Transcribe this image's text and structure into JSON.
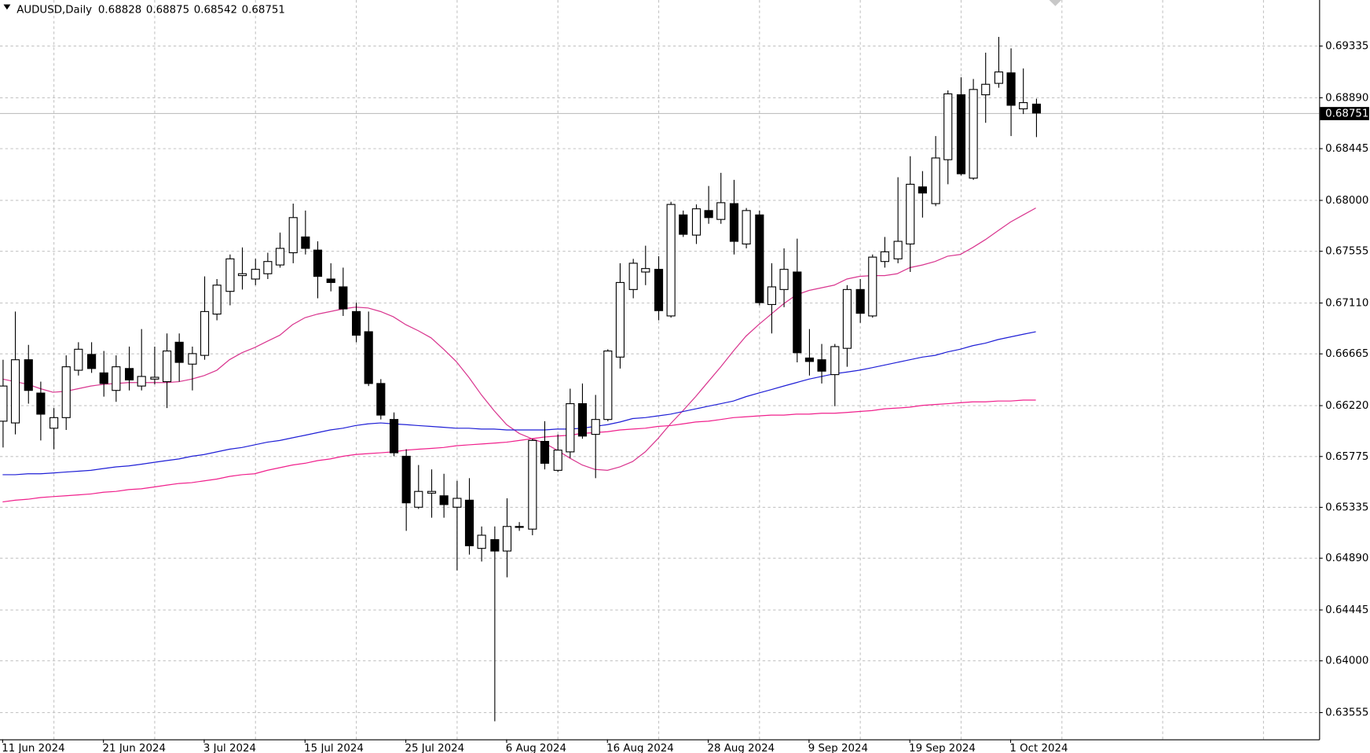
{
  "chart_data": {
    "type": "candlestick",
    "title": "AUDUSD,Daily",
    "categories": [
      "11 Jun 2024",
      null,
      null,
      null,
      null,
      null,
      null,
      null,
      "21 Jun 2024",
      null,
      null,
      null,
      null,
      null,
      null,
      null,
      "3 Jul 2024",
      null,
      null,
      null,
      null,
      null,
      null,
      null,
      "15 Jul 2024",
      null,
      null,
      null,
      null,
      null,
      null,
      null,
      "25 Jul 2024",
      null,
      null,
      null,
      null,
      null,
      null,
      null,
      "6 Aug 2024",
      null,
      null,
      null,
      null,
      null,
      null,
      null,
      "16 Aug 2024",
      null,
      null,
      null,
      null,
      null,
      null,
      null,
      "28 Aug 2024",
      null,
      null,
      null,
      null,
      null,
      null,
      null,
      "9 Sep 2024",
      null,
      null,
      null,
      null,
      null,
      null,
      null,
      "19 Sep 2024",
      null,
      null,
      null,
      null,
      null,
      null,
      null,
      "1 Oct 2024",
      null,
      null
    ],
    "open": [
      0.66078,
      0.66063,
      0.66611,
      0.66322,
      0.66017,
      0.66109,
      0.6652,
      0.66657,
      0.66497,
      0.66345,
      0.66535,
      0.66383,
      0.66443,
      0.66421,
      0.66763,
      0.66573,
      0.66649,
      0.67007,
      0.67204,
      0.67341,
      0.67311,
      0.67357,
      0.67433,
      0.67539,
      0.67676,
      0.67562,
      0.67311,
      0.67243,
      0.67029,
      0.66854,
      0.66405,
      0.66093,
      0.65774,
      0.65332,
      0.65454,
      0.65431,
      0.65332,
      0.65393,
      0.64975,
      0.65051,
      0.64952,
      0.65165,
      0.65142,
      0.65903,
      0.65652,
      0.65812,
      0.6623,
      0.65964,
      0.66093,
      0.66634,
      0.6722,
      0.67372,
      0.67395,
      0.66991,
      0.67867,
      0.67692,
      0.67905,
      0.67828,
      0.67965,
      0.67615,
      0.67867,
      0.6709,
      0.6722,
      0.67372,
      0.66626,
      0.66611,
      0.66482,
      0.6671,
      0.6722,
      0.66991,
      0.67463,
      0.67486,
      0.67615,
      0.6811,
      0.67965,
      0.68346,
      0.68909,
      0.68186,
      0.68909,
      0.69008,
      0.69099,
      0.68787,
      0.68828
    ],
    "high": [
      0.66611,
      0.67029,
      0.6674,
      0.66421,
      0.66192,
      0.66649,
      0.66763,
      0.66763,
      0.66687,
      0.66649,
      0.66725,
      0.66877,
      0.66725,
      0.66839,
      0.66839,
      0.66725,
      0.67334,
      0.67311,
      0.67524,
      0.67585,
      0.67486,
      0.67539,
      0.67714,
      0.67965,
      0.67905,
      0.67638,
      0.67448,
      0.6741,
      0.67106,
      0.67029,
      0.66443,
      0.66154,
      0.65835,
      0.65698,
      0.6566,
      0.65622,
      0.65561,
      0.65584,
      0.65165,
      0.65165,
      0.65409,
      0.65203,
      0.65926,
      0.66078,
      0.65964,
      0.6636,
      0.66405,
      0.66306,
      0.66702,
      0.67448,
      0.67486,
      0.676,
      0.67509,
      0.67981,
      0.67905,
      0.67958,
      0.68118,
      0.68232,
      0.68171,
      0.67927,
      0.67905,
      0.67448,
      0.67577,
      0.67661,
      0.66877,
      0.66748,
      0.66748,
      0.67258,
      0.67311,
      0.67524,
      0.67676,
      0.68194,
      0.68376,
      0.68247,
      0.68551,
      0.68947,
      0.69061,
      0.69046,
      0.69274,
      0.69411,
      0.69312,
      0.69137,
      0.68875
    ],
    "low": [
      0.6585,
      0.65964,
      0.6623,
      0.65911,
      0.65835,
      0.66002,
      0.66474,
      0.66497,
      0.66291,
      0.66246,
      0.66345,
      0.66345,
      0.66398,
      0.66192,
      0.66421,
      0.66345,
      0.66611,
      0.66953,
      0.67083,
      0.6722,
      0.67258,
      0.67311,
      0.6741,
      0.67448,
      0.67524,
      0.67144,
      0.67204,
      0.66991,
      0.66763,
      0.66383,
      0.66093,
      0.65774,
      0.65127,
      0.65317,
      0.65241,
      0.65241,
      0.64784,
      0.64921,
      0.64861,
      0.63476,
      0.64724,
      0.65127,
      0.65089,
      0.6566,
      0.65637,
      0.65759,
      0.65926,
      0.65584,
      0.66078,
      0.66535,
      0.67144,
      0.67258,
      0.66953,
      0.66976,
      0.67676,
      0.67615,
      0.6779,
      0.6779,
      0.67524,
      0.67577,
      0.67083,
      0.66839,
      0.67067,
      0.66588,
      0.66474,
      0.66405,
      0.66208,
      0.6655,
      0.66931,
      0.66976,
      0.6741,
      0.67448,
      0.67372,
      0.67844,
      0.67943,
      0.68133,
      0.68209,
      0.68171,
      0.68666,
      0.6897,
      0.68551,
      0.68742,
      0.68542
    ],
    "close": [
      0.66383,
      0.66611,
      0.66345,
      0.66139,
      0.66109,
      0.6655,
      0.66702,
      0.66535,
      0.66405,
      0.6655,
      0.66436,
      0.66466,
      0.66459,
      0.66687,
      0.66588,
      0.66664,
      0.67029,
      0.67258,
      0.67486,
      0.67357,
      0.67395,
      0.67463,
      0.67577,
      0.67844,
      0.67577,
      0.67334,
      0.67281,
      0.67052,
      0.66824,
      0.66405,
      0.66131,
      0.65804,
      0.6537,
      0.65469,
      0.65469,
      0.65355,
      0.65409,
      0.64998,
      0.65089,
      0.64952,
      0.65165,
      0.65157,
      0.65911,
      0.65713,
      0.65827,
      0.6623,
      0.65949,
      0.66093,
      0.66687,
      0.67281,
      0.67448,
      0.67402,
      0.67037,
      0.67958,
      0.67699,
      0.6792,
      0.67844,
      0.67973,
      0.67638,
      0.67905,
      0.67106,
      0.67243,
      0.67395,
      0.66672,
      0.66596,
      0.66512,
      0.66725,
      0.6722,
      0.67014,
      0.67501,
      0.67547,
      0.67638,
      0.68133,
      0.68057,
      0.68361,
      0.68917,
      0.68224,
      0.68955,
      0.69,
      0.69107,
      0.68818,
      0.68841,
      0.68751
    ],
    "up_color": "#ffffff",
    "down_color": "#000000",
    "series": [
      {
        "color": "#d9368f",
        "values": [
          0.66443,
          0.66421,
          0.66398,
          0.6636,
          0.66329,
          0.66337,
          0.6636,
          0.66383,
          0.66398,
          0.66405,
          0.66413,
          0.66413,
          0.66413,
          0.66413,
          0.66421,
          0.66443,
          0.66474,
          0.6652,
          0.66611,
          0.66672,
          0.66717,
          0.66771,
          0.66824,
          0.66915,
          0.66976,
          0.67007,
          0.67029,
          0.67052,
          0.67067,
          0.6706,
          0.67029,
          0.66984,
          0.66915,
          0.66862,
          0.66801,
          0.66702,
          0.66596,
          0.66459,
          0.66306,
          0.6617,
          0.66048,
          0.65972,
          0.65926,
          0.65888,
          0.65827,
          0.65759,
          0.65698,
          0.6566,
          0.65652,
          0.65682,
          0.65728,
          0.65812,
          0.65926,
          0.66055,
          0.6617,
          0.66291,
          0.66421,
          0.6655,
          0.66687,
          0.66816,
          0.66915,
          0.67007,
          0.67098,
          0.67174,
          0.67212,
          0.67235,
          0.67258,
          0.67311,
          0.67334,
          0.67341,
          0.67341,
          0.67357,
          0.6741,
          0.67433,
          0.67463,
          0.67509,
          0.67524,
          0.67585,
          0.67653,
          0.6773,
          0.67806,
          0.67867,
          0.67927
        ]
      },
      {
        "color": "#1f1fd6",
        "values": [
          0.65614,
          0.65614,
          0.65622,
          0.65622,
          0.65629,
          0.65637,
          0.65644,
          0.65652,
          0.65667,
          0.65682,
          0.6569,
          0.65705,
          0.65721,
          0.65736,
          0.65751,
          0.65774,
          0.65789,
          0.65812,
          0.65835,
          0.6585,
          0.65873,
          0.65896,
          0.65911,
          0.65934,
          0.65956,
          0.65979,
          0.66002,
          0.66017,
          0.6604,
          0.66055,
          0.66063,
          0.66055,
          0.66048,
          0.6604,
          0.66033,
          0.66025,
          0.66017,
          0.66017,
          0.6601,
          0.6601,
          0.66002,
          0.66002,
          0.66002,
          0.66002,
          0.6601,
          0.6601,
          0.66017,
          0.66033,
          0.66048,
          0.66071,
          0.66101,
          0.66109,
          0.66124,
          0.66139,
          0.66162,
          0.66185,
          0.66208,
          0.6623,
          0.66253,
          0.66291,
          0.66322,
          0.66352,
          0.66383,
          0.66413,
          0.66443,
          0.66466,
          0.66489,
          0.66504,
          0.6652,
          0.66542,
          0.66565,
          0.66588,
          0.66611,
          0.66634,
          0.66649,
          0.66679,
          0.66702,
          0.66733,
          0.66755,
          0.66786,
          0.66809,
          0.66832,
          0.66854
        ]
      },
      {
        "color": "#f0208c",
        "values": [
          0.65378,
          0.65393,
          0.65401,
          0.65416,
          0.65424,
          0.65431,
          0.65439,
          0.65447,
          0.65462,
          0.65469,
          0.65485,
          0.65492,
          0.65507,
          0.65523,
          0.65538,
          0.65545,
          0.65561,
          0.65576,
          0.65599,
          0.65614,
          0.65622,
          0.65652,
          0.65675,
          0.65698,
          0.65713,
          0.65736,
          0.65751,
          0.65774,
          0.65789,
          0.65797,
          0.65804,
          0.65812,
          0.65827,
          0.65835,
          0.65842,
          0.6585,
          0.65865,
          0.65873,
          0.6588,
          0.65888,
          0.65896,
          0.65911,
          0.65926,
          0.65941,
          0.65949,
          0.65956,
          0.65972,
          0.65979,
          0.65987,
          0.66002,
          0.6601,
          0.66017,
          0.66033,
          0.6604,
          0.66055,
          0.66071,
          0.66078,
          0.66093,
          0.66109,
          0.66116,
          0.66124,
          0.66131,
          0.66131,
          0.66139,
          0.66139,
          0.66147,
          0.66147,
          0.66154,
          0.66162,
          0.6617,
          0.66185,
          0.66192,
          0.662,
          0.66215,
          0.66223,
          0.6623,
          0.66238,
          0.66246,
          0.66246,
          0.66253,
          0.66253,
          0.66261,
          0.66261
        ]
      }
    ],
    "ylim": [
      0.63319,
      0.69731
    ],
    "yticks": [
      0.69335,
      {
        "value": 0.6889,
        "label": "0.68890"
      },
      0.68445,
      {
        "value": 0.68,
        "label": "0.68000"
      },
      0.67555,
      {
        "value": 0.6711,
        "label": "0.67110"
      },
      0.66665,
      {
        "value": 0.6622,
        "label": "0.66220"
      },
      0.65775,
      0.65335,
      {
        "value": 0.6489,
        "label": "0.64890"
      },
      0.64445,
      {
        "value": 0.64,
        "label": "0.64000"
      },
      0.63555
    ],
    "grid": true
  }
}
